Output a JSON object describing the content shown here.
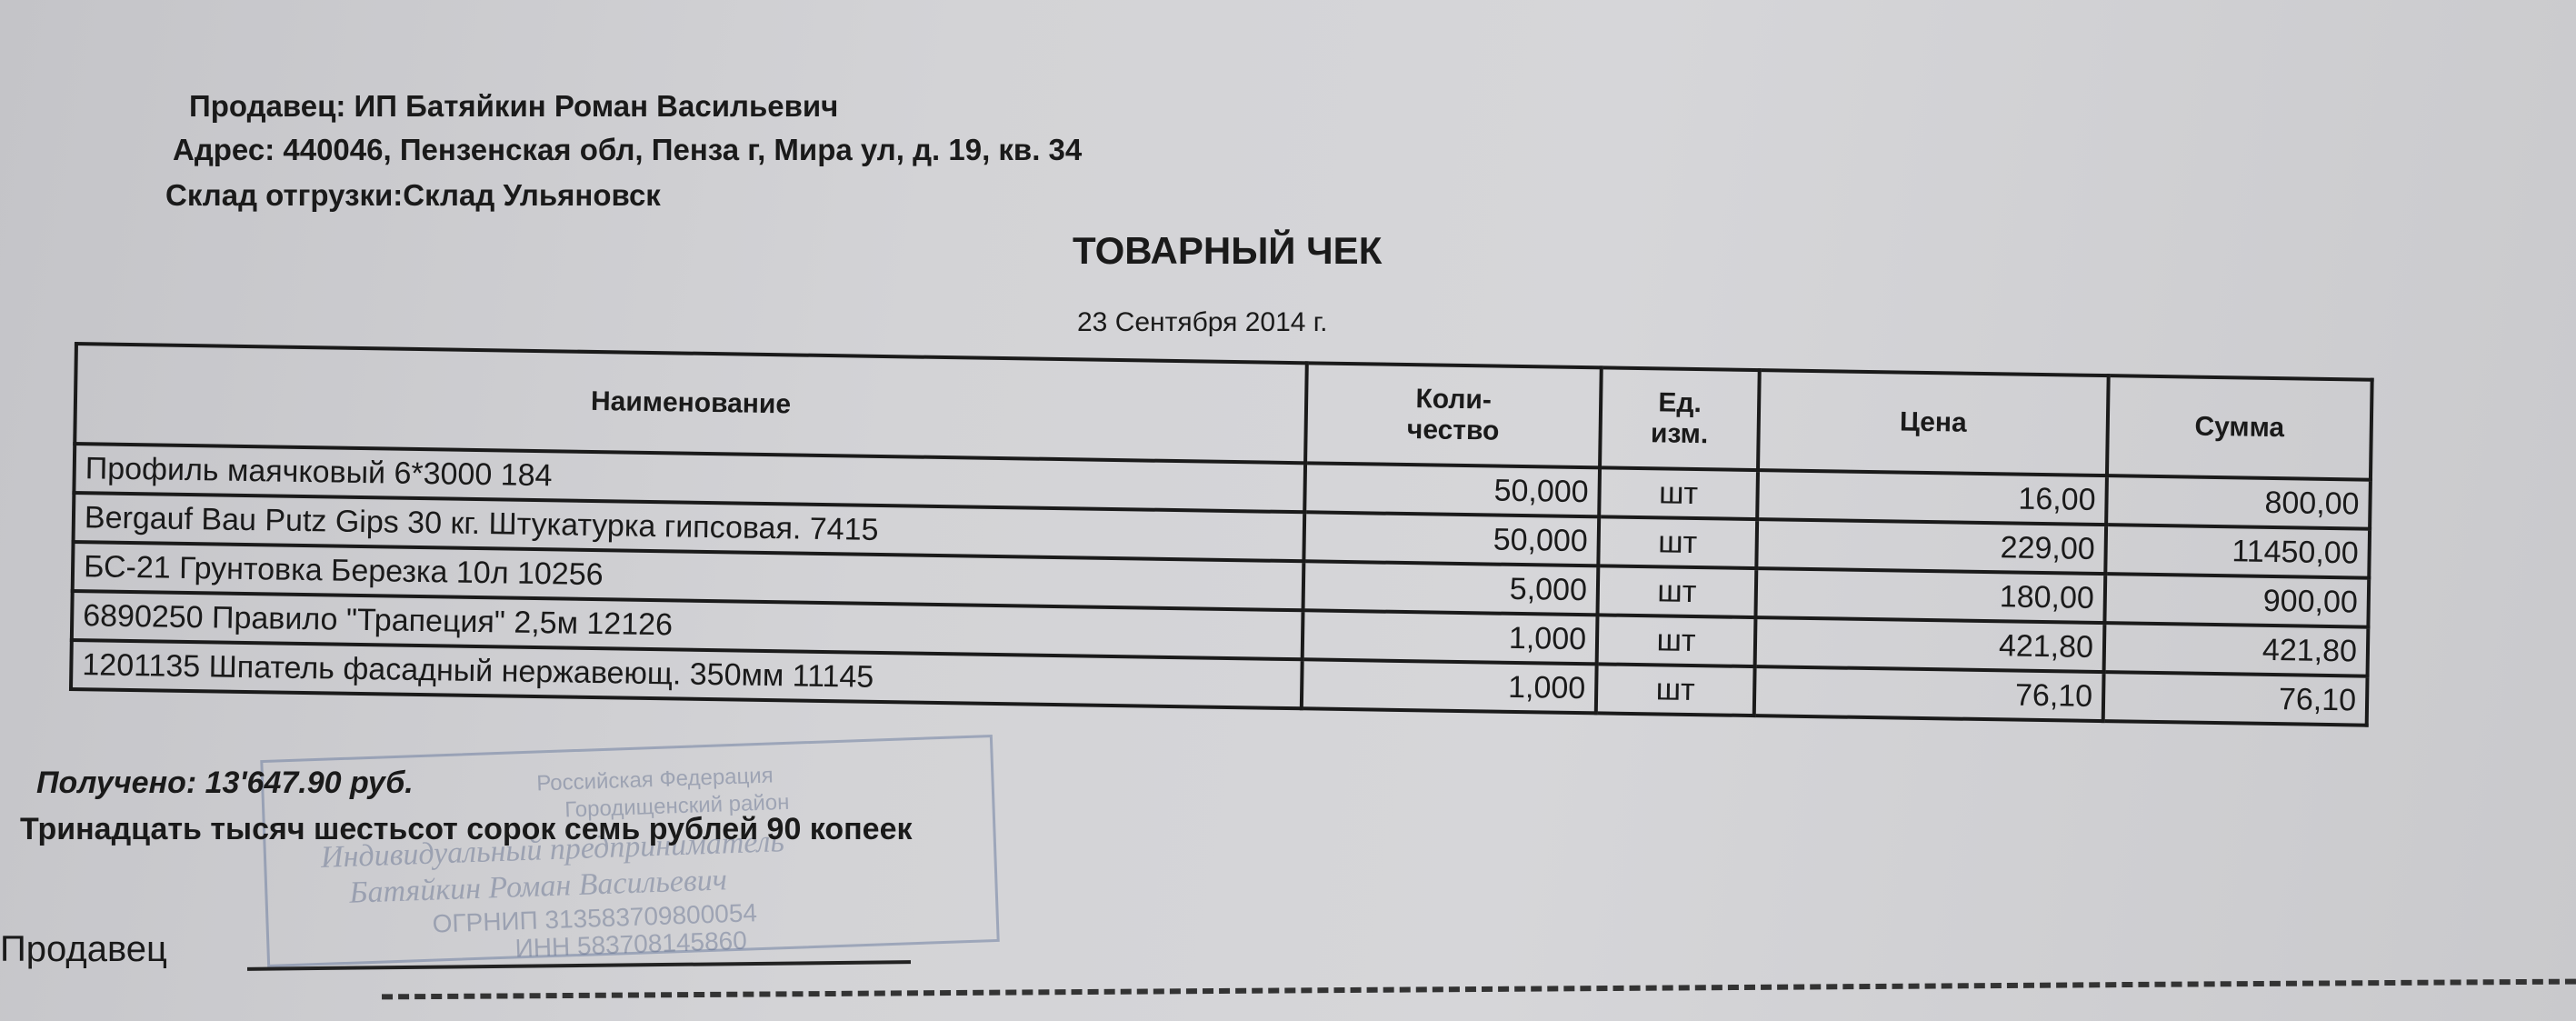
{
  "header": {
    "seller": "Продавец: ИП Батяйкин Роман Васильевич",
    "address": "Адрес: 440046, Пензенская обл, Пенза г, Мира ул, д. 19, кв. 34",
    "warehouse": "Склад отгрузки:Склад Ульяновск"
  },
  "title": "ТОВАРНЫЙ ЧЕК",
  "date": "23 Сентября 2014 г.",
  "table": {
    "columns": [
      "Наименование",
      "Коли-\nчество",
      "Ед.\nизм.",
      "Цена",
      "Сумма"
    ],
    "rows": [
      {
        "name": "Профиль маячковый 6*3000 184",
        "qty": "50,000",
        "unit": "шт",
        "price": "16,00",
        "sum": "800,00"
      },
      {
        "name": "Bergauf Bau Putz Gips 30 кг. Штукатурка гипсовая. 7415",
        "qty": "50,000",
        "unit": "шт",
        "price": "229,00",
        "sum": "11450,00"
      },
      {
        "name": "БС-21 Грунтовка Березка 10л 10256",
        "qty": "5,000",
        "unit": "шт",
        "price": "180,00",
        "sum": "900,00"
      },
      {
        "name": "6890250 Правило \"Трапеция\" 2,5м 12126",
        "qty": "1,000",
        "unit": "шт",
        "price": "421,80",
        "sum": "421,80"
      },
      {
        "name": "1201135 Шпатель фасадный нержавеющ. 350мм 11145",
        "qty": "1,000",
        "unit": "шт",
        "price": "76,10",
        "sum": "76,10"
      }
    ]
  },
  "footer": {
    "received": "Получено: 13'647.90 руб.",
    "amount_words": "Тринадцать тысяч шестьсот сорок семь рублей 90 копеек",
    "signature_label": "Продавец"
  },
  "stamp": {
    "lines": [
      "Российская Федерация",
      "Городищенский район",
      "Индивидуальный предприниматель",
      "Батяйкин Роман Васильевич",
      "ОГРНИП 313583709800054",
      "ИНН 583708145860"
    ],
    "color": "#5a6e96"
  }
}
